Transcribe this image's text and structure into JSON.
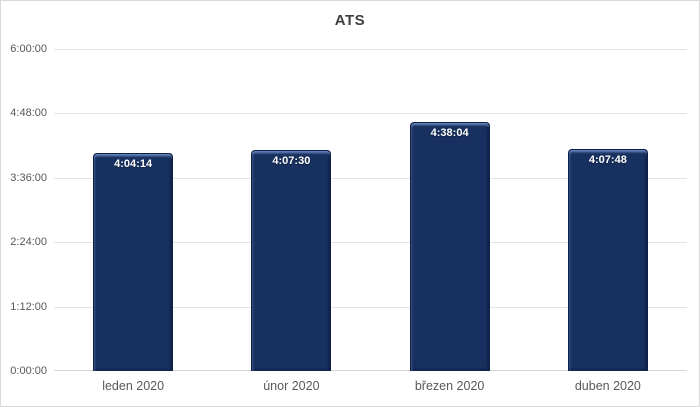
{
  "window": {
    "title": "ATS"
  },
  "chart_data": {
    "type": "bar",
    "title": "ATS",
    "categories": [
      "leden 2020",
      "únor 2020",
      "březen 2020",
      "duben 2020"
    ],
    "series": [
      {
        "name": "ATS",
        "values_seconds": [
          14654,
          14850,
          16684,
          14868
        ],
        "labels": [
          "4:04:14",
          "4:07:30",
          "4:38:04",
          "4:07:48"
        ]
      }
    ],
    "xlabel": "",
    "ylabel": "",
    "y_axis": {
      "ticks_top_to_bottom": [
        "6:00:00",
        "4:48:00",
        "3:36:00",
        "2:24:00",
        "1:12:00",
        "0:00:00"
      ],
      "min_seconds": 0,
      "max_seconds": 21600,
      "tick_interval": "1:12:00"
    },
    "grid": true,
    "legend_position": "none",
    "data_label_position": "inside-end",
    "colors": {
      "bar_fill": "#17305f",
      "bar_border": "#0d1f42",
      "label_text": "#ffffff",
      "axis_text": "#595959",
      "title_text": "#3f3f3f",
      "gridline": "#e3e3e3",
      "axis_line": "#d6d6d6",
      "frame_border": "#d9d9d9",
      "background": "#ffffff"
    }
  }
}
